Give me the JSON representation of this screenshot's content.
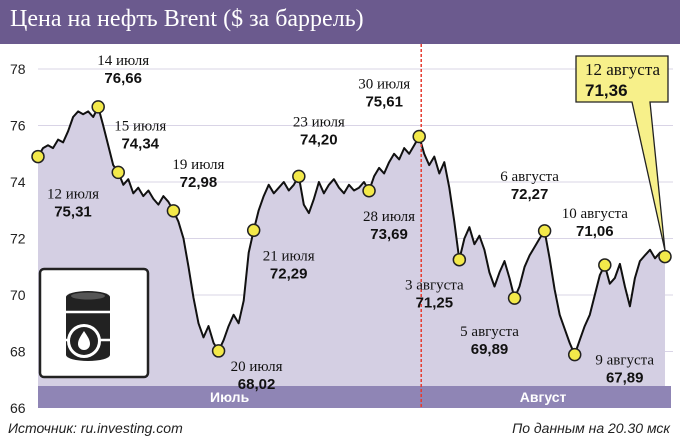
{
  "title": "Цена на нефть Brent ($ за баррель)",
  "source": "Источник: ru.investing.com",
  "note": "По данным на 20.30 мск",
  "icon": "oil-barrel-icon",
  "colors": {
    "title_bg": "#6b5a8e",
    "area_fill": "#d4cfe3",
    "month_bar": "#8f85b5",
    "line": "#111111",
    "marker": "#f3e94a",
    "callout": "#f7f08a",
    "divider": "#e63a2f"
  },
  "chart_data": {
    "type": "line",
    "title": "Цена на нефть Brent ($ за баррель)",
    "ylim": [
      66,
      78
    ],
    "yticks": [
      66,
      68,
      70,
      72,
      74,
      76,
      78
    ],
    "months": [
      "Июль",
      "Август"
    ],
    "series": [
      {
        "values": [
          74.9,
          75.2,
          75.3,
          75.2,
          75.5,
          75.4,
          75.8,
          76.3,
          76.5,
          76.4,
          76.5,
          76.3,
          76.66,
          76.0,
          75.3,
          74.6,
          74.34,
          73.9,
          74.1,
          73.6,
          73.8,
          73.5,
          73.7,
          73.4,
          73.2,
          73.5,
          73.3,
          72.98,
          72.6,
          72.0,
          71.0,
          69.9,
          69.0,
          68.5,
          68.9,
          68.3,
          68.02,
          68.4,
          68.9,
          69.3,
          69.0,
          69.8,
          71.5,
          72.29,
          73.0,
          73.5,
          73.9,
          73.6,
          73.8,
          74.0,
          73.7,
          73.9,
          74.2,
          73.2,
          72.9,
          73.4,
          74.0,
          73.6,
          73.9,
          74.1,
          73.8,
          73.6,
          73.9,
          73.7,
          73.8,
          74.0,
          73.69,
          74.2,
          74.5,
          74.3,
          74.7,
          75.0,
          74.8,
          75.2,
          75.0,
          75.3,
          75.61,
          75.0,
          74.6,
          74.9,
          74.3,
          74.7,
          73.8,
          72.6,
          71.25,
          72.0,
          72.4,
          71.8,
          72.1,
          71.6,
          70.8,
          70.3,
          70.8,
          71.2,
          70.6,
          69.89,
          70.3,
          71.0,
          71.4,
          71.7,
          72.0,
          72.27,
          71.3,
          70.2,
          69.3,
          68.8,
          68.3,
          67.89,
          68.4,
          68.9,
          69.3,
          70.0,
          70.7,
          71.06,
          70.4,
          70.6,
          71.1,
          70.3,
          69.6,
          70.6,
          71.2,
          71.4,
          71.6,
          71.3,
          71.5,
          71.36
        ]
      }
    ],
    "annotations": [
      {
        "date": "12 июля",
        "value": "75,31"
      },
      {
        "date": "14 июля",
        "value": "76,66"
      },
      {
        "date": "15 июля",
        "value": "74,34"
      },
      {
        "date": "19 июля",
        "value": "72,98"
      },
      {
        "date": "20 июля",
        "value": "68,02"
      },
      {
        "date": "21 июля",
        "value": "72,29"
      },
      {
        "date": "23 июля",
        "value": "74,20"
      },
      {
        "date": "28 июля",
        "value": "73,69"
      },
      {
        "date": "30 июля",
        "value": "75,61"
      },
      {
        "date": "3 августа",
        "value": "71,25"
      },
      {
        "date": "5 августа",
        "value": "69,89"
      },
      {
        "date": "6 августа",
        "value": "72,27"
      },
      {
        "date": "9 августа",
        "value": "67,89"
      },
      {
        "date": "10 августа",
        "value": "71,06"
      },
      {
        "date": "12 августа",
        "value": "71,36"
      }
    ]
  }
}
